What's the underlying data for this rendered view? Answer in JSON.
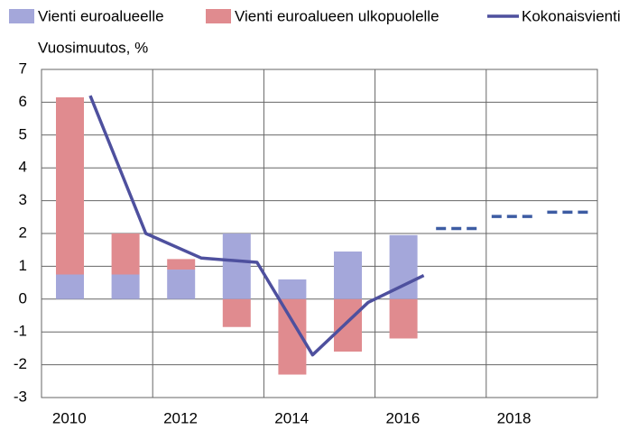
{
  "chart_data": {
    "type": "bar_line",
    "subtitle": "Vuosimuutos, %",
    "x": [
      2010,
      2011,
      2012,
      2013,
      2014,
      2015,
      2016,
      2017,
      2018,
      2019
    ],
    "xlim": [
      2010,
      2020
    ],
    "xticks": [
      2010,
      2012,
      2014,
      2016,
      2018
    ],
    "ylim": [
      -3,
      7
    ],
    "yticks": [
      -3,
      -2,
      -1,
      0,
      1,
      2,
      3,
      4,
      5,
      6,
      7
    ],
    "grid": true,
    "legend": "top",
    "series": [
      {
        "name": "Vienti euroalueelle",
        "kind": "bar",
        "color": "#a4a7da",
        "values": [
          0.75,
          0.75,
          0.9,
          2.0,
          0.6,
          1.45,
          1.95,
          null,
          null,
          null
        ]
      },
      {
        "name": "Vienti euroalueen ulkopuolelle",
        "kind": "bar",
        "color": "#e08b8f",
        "values": [
          5.4,
          1.25,
          0.32,
          -0.85,
          -2.3,
          -1.6,
          -1.2,
          null,
          null,
          null
        ]
      },
      {
        "name": "Kokonaisvienti",
        "kind": "line",
        "color": "#4e509e",
        "dashed_color": "#3d5ca3",
        "dashed_from": 2017,
        "values": [
          6.2,
          2.0,
          1.25,
          1.12,
          -1.7,
          -0.1,
          0.72,
          2.15,
          2.52,
          2.65
        ]
      }
    ]
  }
}
